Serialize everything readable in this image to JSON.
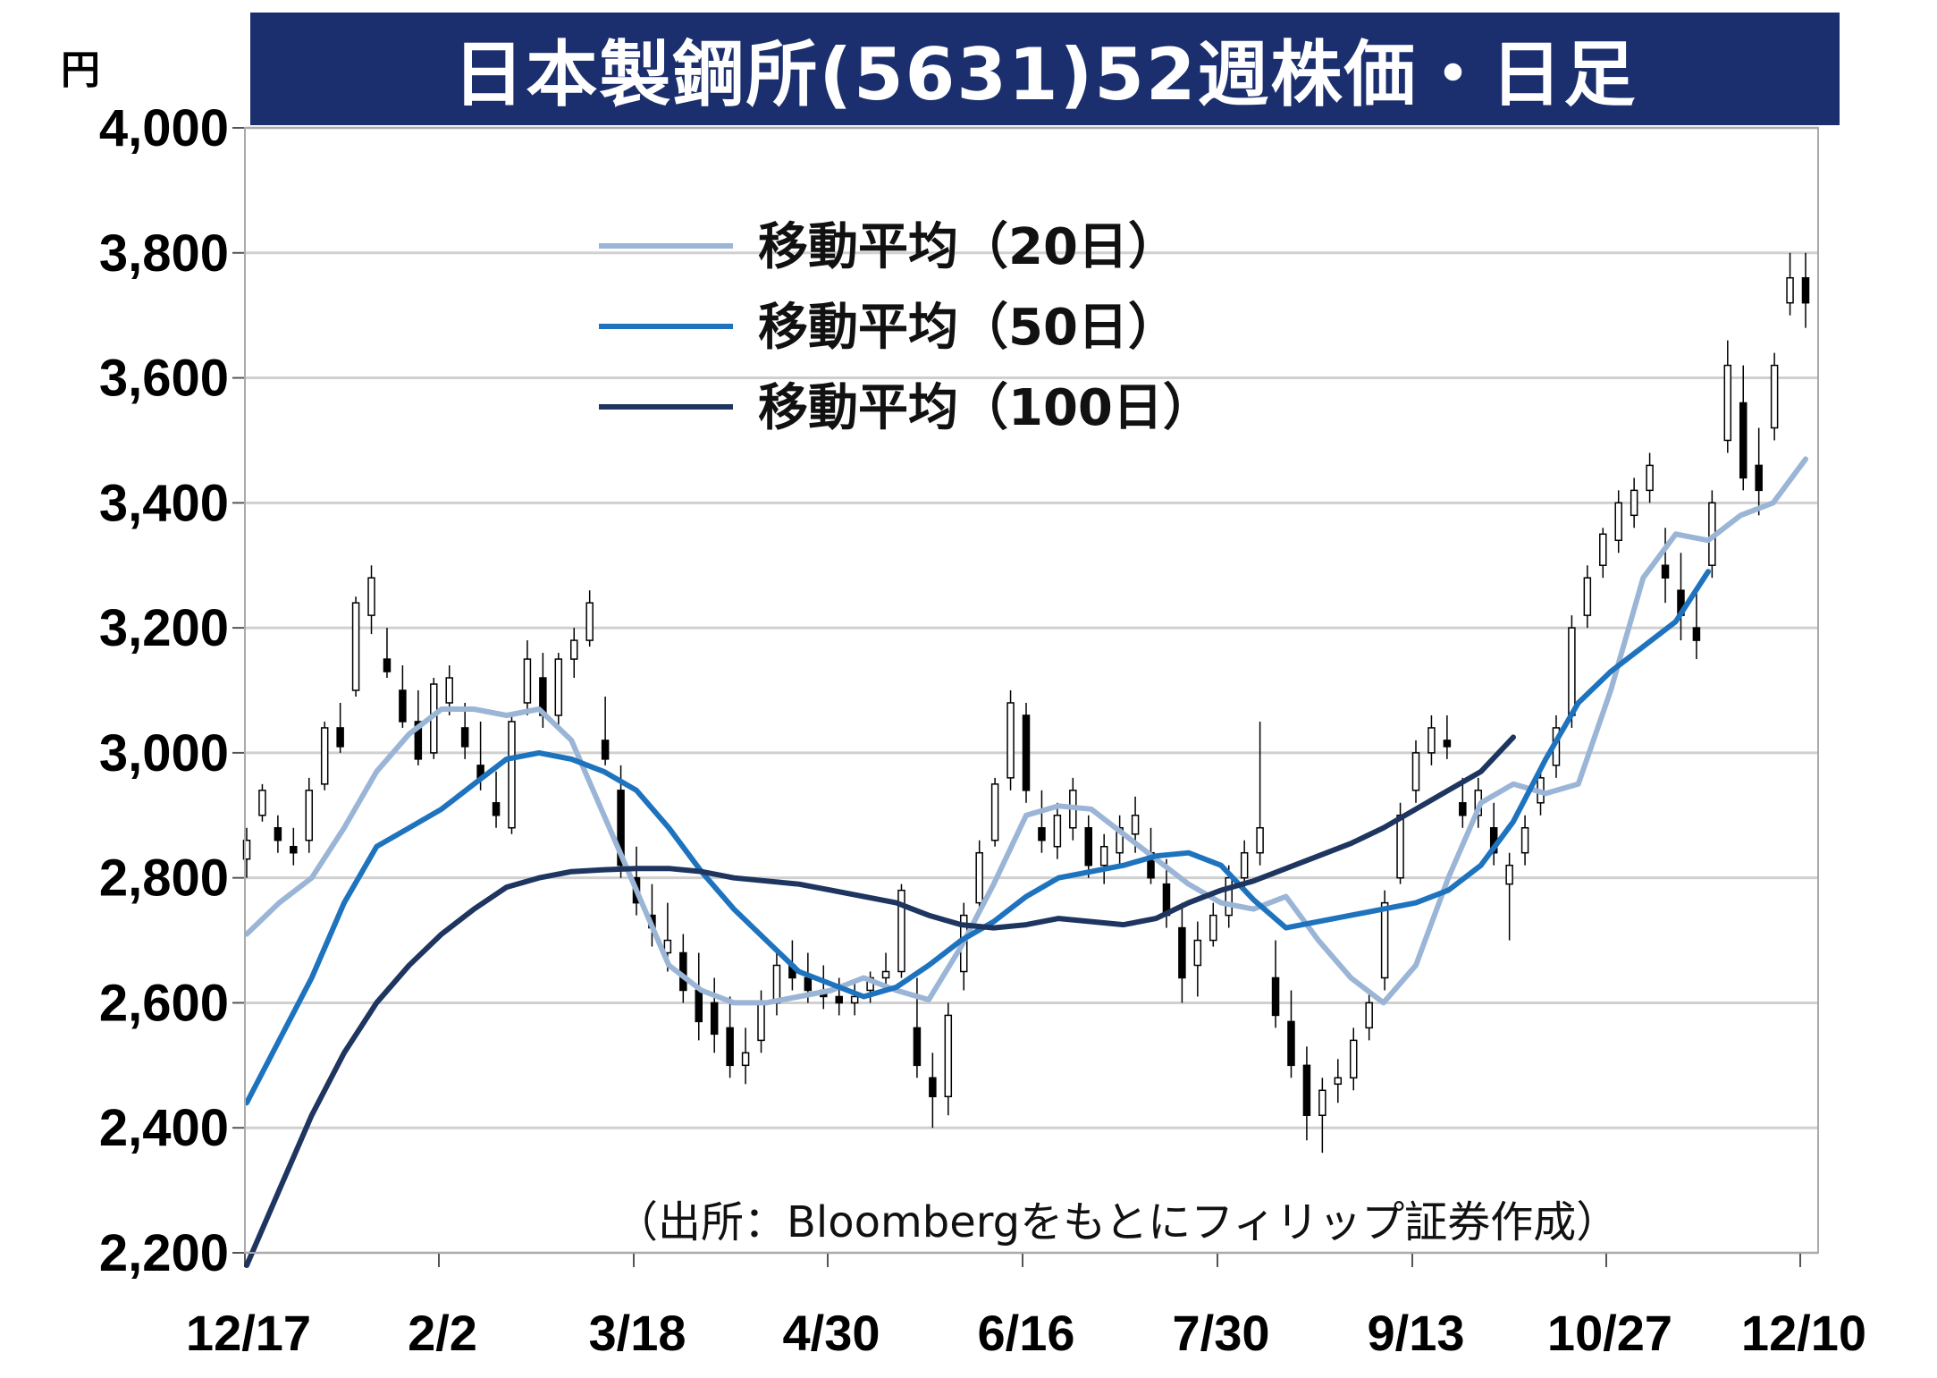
{
  "chart_data": {
    "type": "candlestick",
    "title": "日本製鋼所(5631)52週株価・日足",
    "unit_label": "円",
    "ylim": [
      2200,
      4000
    ],
    "y_ticks": [
      "4,000",
      "3,800",
      "3,600",
      "3,400",
      "3,200",
      "3,000",
      "2,800",
      "2,600",
      "2,400",
      "2,200"
    ],
    "x_tick_labels": [
      "12/17",
      "2/2",
      "3/18",
      "4/30",
      "6/16",
      "7/30",
      "9/13",
      "10/27",
      "12/10"
    ],
    "grid": true,
    "legend_position": "top-left",
    "source": "（出所：Bloombergをもとにフィリップ証券作成）",
    "series": [
      {
        "name": "移動平均（20日）",
        "color": "#9ab5d6",
        "values": [
          [
            0,
            2710
          ],
          [
            5,
            2760
          ],
          [
            10,
            2800
          ],
          [
            15,
            2880
          ],
          [
            20,
            2970
          ],
          [
            25,
            3030
          ],
          [
            30,
            3070
          ],
          [
            35,
            3070
          ],
          [
            40,
            3060
          ],
          [
            45,
            3070
          ],
          [
            50,
            3020
          ],
          [
            55,
            2900
          ],
          [
            60,
            2780
          ],
          [
            65,
            2660
          ],
          [
            70,
            2620
          ],
          [
            75,
            2600
          ],
          [
            80,
            2600
          ],
          [
            85,
            2610
          ],
          [
            90,
            2620
          ],
          [
            95,
            2640
          ],
          [
            100,
            2620
          ],
          [
            105,
            2605
          ],
          [
            110,
            2690
          ],
          [
            115,
            2790
          ],
          [
            120,
            2900
          ],
          [
            125,
            2915
          ],
          [
            130,
            2910
          ],
          [
            135,
            2870
          ],
          [
            140,
            2830
          ],
          [
            145,
            2790
          ],
          [
            150,
            2760
          ],
          [
            155,
            2750
          ],
          [
            160,
            2770
          ],
          [
            165,
            2700
          ],
          [
            170,
            2640
          ],
          [
            175,
            2600
          ],
          [
            180,
            2660
          ],
          [
            185,
            2800
          ],
          [
            190,
            2920
          ],
          [
            195,
            2950
          ],
          [
            200,
            2935
          ],
          [
            205,
            2950
          ],
          [
            210,
            3100
          ],
          [
            215,
            3280
          ],
          [
            220,
            3350
          ],
          [
            225,
            3340
          ],
          [
            230,
            3380
          ],
          [
            235,
            3400
          ],
          [
            240,
            3470
          ]
        ]
      },
      {
        "name": "移動平均（50日）",
        "color": "#1e73be",
        "values": [
          [
            0,
            2440
          ],
          [
            5,
            2540
          ],
          [
            10,
            2640
          ],
          [
            15,
            2760
          ],
          [
            20,
            2850
          ],
          [
            25,
            2880
          ],
          [
            30,
            2910
          ],
          [
            35,
            2950
          ],
          [
            40,
            2990
          ],
          [
            45,
            3000
          ],
          [
            50,
            2990
          ],
          [
            55,
            2970
          ],
          [
            60,
            2940
          ],
          [
            65,
            2880
          ],
          [
            70,
            2810
          ],
          [
            75,
            2750
          ],
          [
            80,
            2700
          ],
          [
            85,
            2650
          ],
          [
            90,
            2630
          ],
          [
            95,
            2610
          ],
          [
            100,
            2625
          ],
          [
            105,
            2660
          ],
          [
            110,
            2700
          ],
          [
            115,
            2730
          ],
          [
            120,
            2770
          ],
          [
            125,
            2800
          ],
          [
            130,
            2810
          ],
          [
            135,
            2820
          ],
          [
            140,
            2835
          ],
          [
            145,
            2840
          ],
          [
            150,
            2820
          ],
          [
            155,
            2765
          ],
          [
            160,
            2720
          ],
          [
            165,
            2730
          ],
          [
            170,
            2740
          ],
          [
            175,
            2750
          ],
          [
            180,
            2760
          ],
          [
            185,
            2780
          ],
          [
            190,
            2820
          ],
          [
            195,
            2890
          ],
          [
            200,
            2990
          ],
          [
            205,
            3080
          ],
          [
            210,
            3130
          ],
          [
            215,
            3170
          ],
          [
            220,
            3210
          ],
          [
            225,
            3290
          ]
        ]
      },
      {
        "name": "移動平均（100日）",
        "color": "#1e3560",
        "values": [
          [
            0,
            2180
          ],
          [
            5,
            2300
          ],
          [
            10,
            2420
          ],
          [
            15,
            2520
          ],
          [
            20,
            2600
          ],
          [
            25,
            2660
          ],
          [
            30,
            2710
          ],
          [
            35,
            2750
          ],
          [
            40,
            2785
          ],
          [
            45,
            2800
          ],
          [
            50,
            2810
          ],
          [
            55,
            2813
          ],
          [
            60,
            2815
          ],
          [
            65,
            2815
          ],
          [
            70,
            2810
          ],
          [
            75,
            2800
          ],
          [
            80,
            2795
          ],
          [
            85,
            2790
          ],
          [
            90,
            2780
          ],
          [
            95,
            2770
          ],
          [
            100,
            2760
          ],
          [
            105,
            2740
          ],
          [
            110,
            2725
          ],
          [
            115,
            2720
          ],
          [
            120,
            2725
          ],
          [
            125,
            2735
          ],
          [
            130,
            2730
          ],
          [
            135,
            2725
          ],
          [
            140,
            2735
          ],
          [
            145,
            2760
          ],
          [
            150,
            2780
          ],
          [
            155,
            2795
          ],
          [
            160,
            2815
          ],
          [
            165,
            2835
          ],
          [
            170,
            2855
          ],
          [
            175,
            2880
          ],
          [
            180,
            2910
          ],
          [
            185,
            2940
          ],
          [
            190,
            2970
          ],
          [
            195,
            3025
          ]
        ]
      }
    ],
    "candles_note": "daily OHLC estimated; [index, open, high, low, close]",
    "candles": [
      [
        0,
        2830,
        2880,
        2800,
        2860
      ],
      [
        2,
        2900,
        2950,
        2890,
        2940
      ],
      [
        4,
        2880,
        2900,
        2840,
        2860
      ],
      [
        6,
        2850,
        2880,
        2820,
        2840
      ],
      [
        8,
        2860,
        2960,
        2840,
        2940
      ],
      [
        10,
        2950,
        3050,
        2940,
        3040
      ],
      [
        12,
        3040,
        3080,
        3000,
        3010
      ],
      [
        14,
        3100,
        3250,
        3090,
        3240
      ],
      [
        16,
        3220,
        3300,
        3190,
        3280
      ],
      [
        18,
        3150,
        3200,
        3120,
        3130
      ],
      [
        20,
        3100,
        3140,
        3040,
        3050
      ],
      [
        22,
        3050,
        3100,
        2980,
        2990
      ],
      [
        24,
        3000,
        3120,
        2990,
        3110
      ],
      [
        26,
        3080,
        3140,
        3060,
        3120
      ],
      [
        28,
        3040,
        3080,
        2990,
        3010
      ],
      [
        30,
        2980,
        3050,
        2940,
        2960
      ],
      [
        32,
        2920,
        2970,
        2880,
        2900
      ],
      [
        34,
        2880,
        3060,
        2870,
        3050
      ],
      [
        36,
        3080,
        3180,
        3060,
        3150
      ],
      [
        38,
        3120,
        3160,
        3040,
        3060
      ],
      [
        40,
        3060,
        3160,
        3040,
        3150
      ],
      [
        42,
        3150,
        3200,
        3120,
        3180
      ],
      [
        44,
        3180,
        3260,
        3170,
        3240
      ],
      [
        46,
        3020,
        3090,
        2980,
        2990
      ],
      [
        48,
        2940,
        2980,
        2800,
        2820
      ],
      [
        50,
        2800,
        2850,
        2740,
        2760
      ],
      [
        52,
        2740,
        2790,
        2690,
        2720
      ],
      [
        54,
        2680,
        2760,
        2650,
        2700
      ],
      [
        56,
        2680,
        2710,
        2600,
        2620
      ],
      [
        58,
        2620,
        2680,
        2540,
        2570
      ],
      [
        60,
        2600,
        2640,
        2520,
        2550
      ],
      [
        62,
        2560,
        2610,
        2480,
        2500
      ],
      [
        64,
        2500,
        2560,
        2470,
        2520
      ],
      [
        66,
        2540,
        2620,
        2520,
        2600
      ],
      [
        68,
        2600,
        2680,
        2580,
        2660
      ],
      [
        70,
        2660,
        2700,
        2620,
        2640
      ],
      [
        72,
        2640,
        2680,
        2600,
        2620
      ],
      [
        74,
        2620,
        2660,
        2590,
        2610
      ],
      [
        76,
        2610,
        2640,
        2580,
        2600
      ],
      [
        78,
        2600,
        2630,
        2580,
        2610
      ],
      [
        80,
        2620,
        2650,
        2600,
        2640
      ],
      [
        82,
        2640,
        2680,
        2620,
        2650
      ],
      [
        84,
        2650,
        2790,
        2640,
        2780
      ],
      [
        86,
        2560,
        2640,
        2480,
        2500
      ],
      [
        88,
        2480,
        2520,
        2400,
        2450
      ],
      [
        90,
        2450,
        2600,
        2420,
        2580
      ],
      [
        92,
        2650,
        2760,
        2620,
        2740
      ],
      [
        94,
        2760,
        2860,
        2740,
        2840
      ],
      [
        96,
        2860,
        2960,
        2850,
        2950
      ],
      [
        98,
        2960,
        3100,
        2940,
        3080
      ],
      [
        100,
        3060,
        3080,
        2920,
        2940
      ],
      [
        102,
        2880,
        2940,
        2840,
        2860
      ],
      [
        104,
        2850,
        2920,
        2830,
        2900
      ],
      [
        106,
        2880,
        2960,
        2860,
        2940
      ],
      [
        108,
        2880,
        2900,
        2800,
        2820
      ],
      [
        110,
        2820,
        2870,
        2790,
        2850
      ],
      [
        112,
        2840,
        2900,
        2820,
        2880
      ],
      [
        114,
        2870,
        2930,
        2840,
        2900
      ],
      [
        116,
        2840,
        2880,
        2790,
        2800
      ],
      [
        118,
        2790,
        2830,
        2720,
        2740
      ],
      [
        120,
        2720,
        2760,
        2600,
        2640
      ],
      [
        122,
        2660,
        2730,
        2610,
        2700
      ],
      [
        124,
        2700,
        2760,
        2690,
        2740
      ],
      [
        126,
        2740,
        2820,
        2720,
        2800
      ],
      [
        128,
        2800,
        2860,
        2780,
        2840
      ],
      [
        130,
        2840,
        3050,
        2820,
        2880
      ],
      [
        132,
        2640,
        2700,
        2560,
        2580
      ],
      [
        134,
        2570,
        2620,
        2480,
        2500
      ],
      [
        136,
        2500,
        2530,
        2380,
        2420
      ],
      [
        138,
        2420,
        2480,
        2360,
        2460
      ],
      [
        140,
        2470,
        2510,
        2440,
        2480
      ],
      [
        142,
        2480,
        2560,
        2460,
        2540
      ],
      [
        144,
        2560,
        2620,
        2540,
        2600
      ],
      [
        146,
        2640,
        2780,
        2620,
        2760
      ],
      [
        148,
        2800,
        2920,
        2790,
        2900
      ],
      [
        150,
        2940,
        3020,
        2920,
        3000
      ],
      [
        152,
        3000,
        3060,
        2980,
        3040
      ],
      [
        154,
        3020,
        3060,
        2990,
        3010
      ],
      [
        156,
        2920,
        2960,
        2880,
        2900
      ],
      [
        158,
        2900,
        2960,
        2880,
        2940
      ],
      [
        160,
        2880,
        2920,
        2820,
        2840
      ],
      [
        162,
        2790,
        2840,
        2700,
        2820
      ],
      [
        164,
        2840,
        2900,
        2820,
        2880
      ],
      [
        166,
        2920,
        2980,
        2900,
        2960
      ],
      [
        168,
        2980,
        3060,
        2960,
        3040
      ],
      [
        170,
        3060,
        3220,
        3040,
        3200
      ],
      [
        172,
        3220,
        3300,
        3200,
        3280
      ],
      [
        174,
        3300,
        3360,
        3280,
        3350
      ],
      [
        176,
        3340,
        3420,
        3320,
        3400
      ],
      [
        178,
        3380,
        3440,
        3360,
        3420
      ],
      [
        180,
        3420,
        3480,
        3400,
        3460
      ],
      [
        182,
        3300,
        3360,
        3240,
        3280
      ],
      [
        184,
        3260,
        3320,
        3180,
        3220
      ],
      [
        186,
        3200,
        3260,
        3150,
        3180
      ],
      [
        188,
        3300,
        3420,
        3280,
        3400
      ],
      [
        190,
        3500,
        3660,
        3480,
        3620
      ],
      [
        192,
        3560,
        3620,
        3420,
        3440
      ],
      [
        194,
        3460,
        3520,
        3380,
        3420
      ],
      [
        196,
        3520,
        3640,
        3500,
        3620
      ],
      [
        198,
        3720,
        3800,
        3700,
        3760
      ],
      [
        200,
        3760,
        3800,
        3680,
        3720
      ]
    ]
  }
}
